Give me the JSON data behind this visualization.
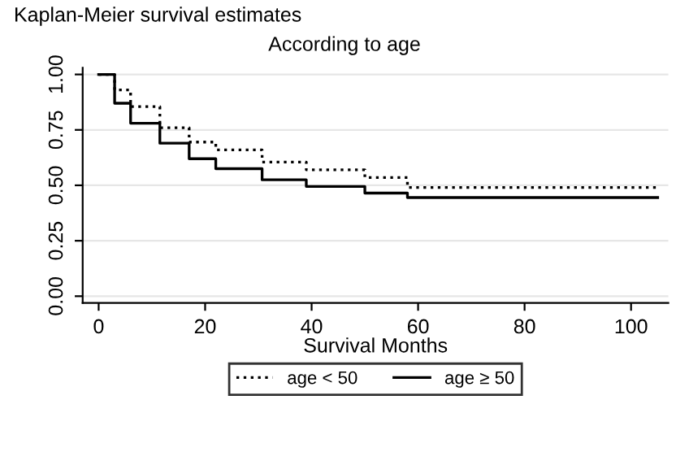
{
  "chart_data": {
    "type": "step",
    "title": "Kaplan-Meier survival estimates",
    "subtitle": "According to age",
    "xlabel": "Survival Months",
    "xlim": [
      -3,
      107
    ],
    "xticks": [
      0,
      20,
      40,
      60,
      80,
      100
    ],
    "ylim": [
      -0.03,
      1.03
    ],
    "yticks": [
      {
        "value": 0,
        "label": "0.00"
      },
      {
        "value": 0.25,
        "label": "0.25"
      },
      {
        "value": 0.5,
        "label": "0.50"
      },
      {
        "value": 0.75,
        "label": "0.75"
      },
      {
        "value": 1,
        "label": "1.00"
      }
    ],
    "grid": "y",
    "legend": "bottom",
    "series": [
      {
        "name": "age < 50",
        "color": "#000000",
        "line_style": "dotted",
        "x": [
          0,
          3,
          6,
          11.5,
          17,
          22,
          30.7,
          39,
          50,
          58,
          105
        ],
        "values": [
          1.0,
          0.93,
          0.855,
          0.76,
          0.695,
          0.66,
          0.605,
          0.57,
          0.535,
          0.49,
          0.49
        ]
      },
      {
        "name": "age ≥ 50",
        "color": "#000000",
        "line_style": "solid",
        "x": [
          0,
          3,
          6,
          11.5,
          17,
          22,
          30.7,
          39,
          50,
          58,
          105
        ],
        "values": [
          1.0,
          0.87,
          0.78,
          0.69,
          0.62,
          0.575,
          0.525,
          0.495,
          0.465,
          0.445,
          0.445
        ]
      }
    ]
  }
}
